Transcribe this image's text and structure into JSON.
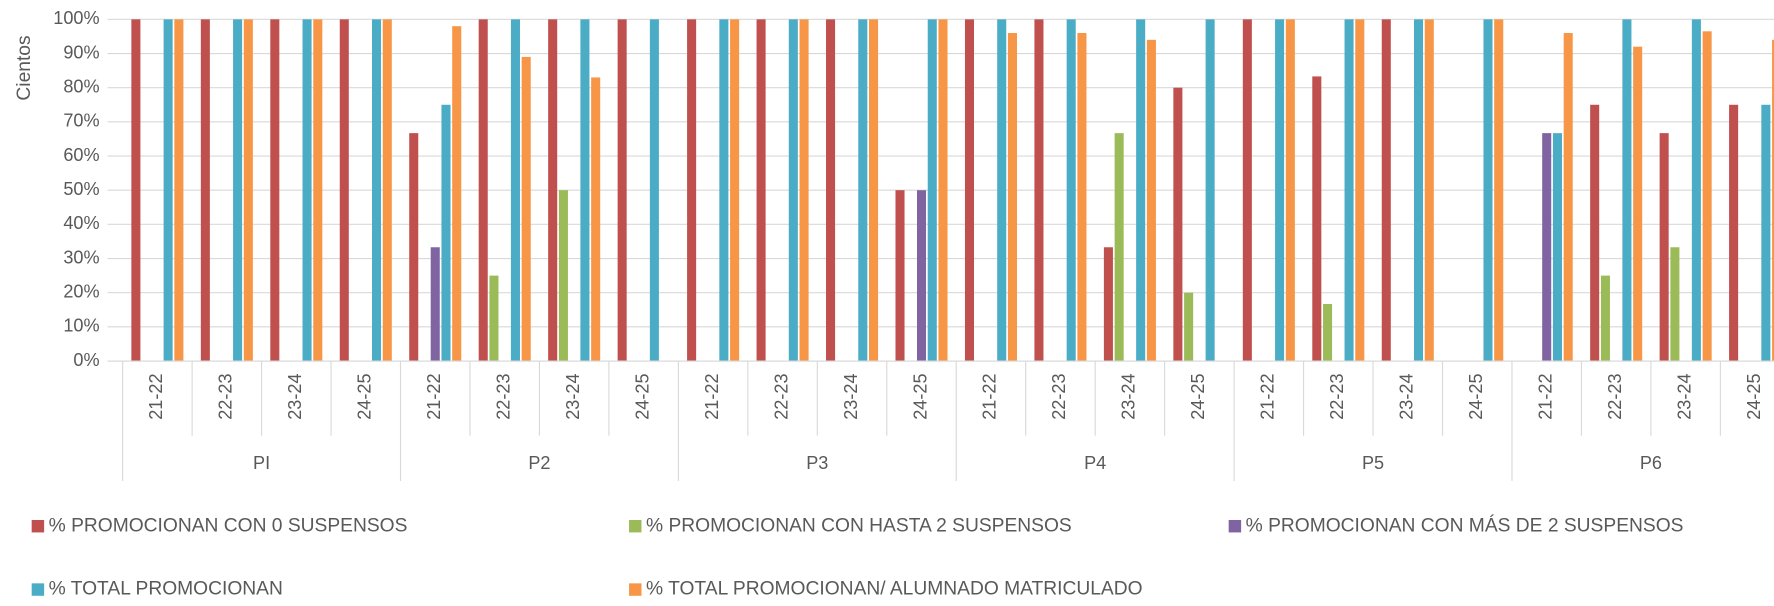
{
  "chart_data": {
    "type": "bar",
    "y_axis_label": "Cientos",
    "categories": [
      "21-22",
      "22-23",
      "23-24",
      "24-25",
      "21-22",
      "22-23",
      "23-24",
      "24-25",
      "21-22",
      "22-23",
      "23-24",
      "24-25",
      "21-22",
      "22-23",
      "23-24",
      "24-25",
      "21-22",
      "22-23",
      "23-24",
      "24-25",
      "21-22",
      "22-23",
      "23-24",
      "24-25"
    ],
    "category_groups": [
      "PI",
      "P2",
      "P3",
      "P4",
      "P5",
      "P6"
    ],
    "series": [
      {
        "name": "% PROMOCIONAN CON 0 SUSPENSOS",
        "color": "#c0504d",
        "values": [
          100,
          100,
          100,
          100,
          66.7,
          100,
          100,
          100,
          100,
          100,
          100,
          50,
          100,
          100,
          33.3,
          80,
          100,
          83.3,
          100,
          0,
          0,
          75,
          66.7,
          75
        ]
      },
      {
        "name": "% PROMOCIONAN CON HASTA 2 SUSPENSOS",
        "color": "#9bbb59",
        "values": [
          0,
          0,
          0,
          0,
          0,
          25,
          50,
          0,
          0,
          0,
          0,
          0,
          0,
          0,
          66.7,
          20,
          0,
          16.7,
          0,
          0,
          0,
          25,
          33.3,
          0
        ]
      },
      {
        "name": "% PROMOCIONAN CON MÁS DE 2 SUSPENSOS",
        "color": "#8064a2",
        "values": [
          0,
          0,
          0,
          0,
          33.3,
          0,
          0,
          0,
          0,
          0,
          0,
          50,
          0,
          0,
          0,
          0,
          0,
          0,
          0,
          0,
          66.7,
          0,
          0,
          0
        ]
      },
      {
        "name": "% TOTAL PROMOCIONAN",
        "color": "#4bacc6",
        "values": [
          100,
          100,
          100,
          100,
          75,
          100,
          100,
          100,
          100,
          100,
          100,
          100,
          100,
          100,
          100,
          100,
          100,
          100,
          100,
          100,
          66.7,
          100,
          100,
          75
        ]
      },
      {
        "name": "% TOTAL PROMOCIONAN/ ALUMNADO MATRICULADO",
        "color": "#f79646",
        "values": [
          100,
          100,
          100,
          100,
          98,
          89,
          83,
          0,
          100,
          100,
          100,
          100,
          96,
          96,
          94,
          0,
          100,
          100,
          100,
          100,
          96,
          92,
          96.5,
          94
        ]
      }
    ],
    "ylim": [
      0,
      100
    ],
    "yticks": [
      {
        "value": 0,
        "label": "0%"
      },
      {
        "value": 10,
        "label": "10%"
      },
      {
        "value": 20,
        "label": "20%"
      },
      {
        "value": 30,
        "label": "30%"
      },
      {
        "value": 40,
        "label": "40%"
      },
      {
        "value": 50,
        "label": "50%"
      },
      {
        "value": 60,
        "label": "60%"
      },
      {
        "value": 70,
        "label": "70%"
      },
      {
        "value": 80,
        "label": "80%"
      },
      {
        "value": 90,
        "label": "90%"
      },
      {
        "value": 100,
        "label": "100%"
      }
    ],
    "grid": true,
    "legend_position": "bottom"
  }
}
